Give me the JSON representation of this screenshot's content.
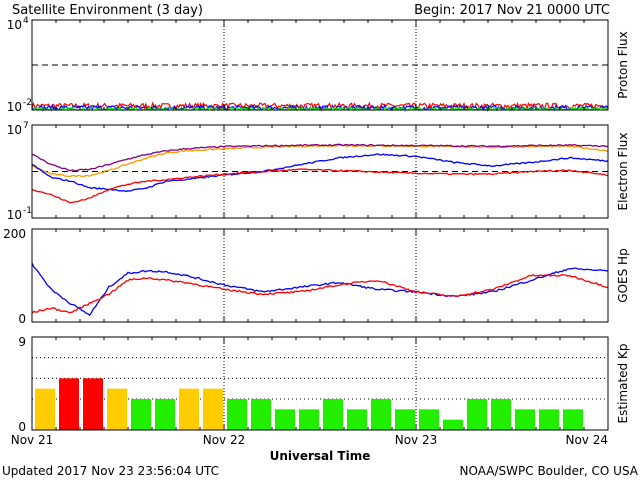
{
  "header": {
    "title": "Satellite Environment (3 day)",
    "begin": "Begin:  2017 Nov 21 0000 UTC"
  },
  "footer": {
    "updated": "Updated 2017 Nov 23 23:56:04 UTC",
    "credit": "NOAA/SWPC Boulder, CO USA"
  },
  "chart_data": [
    {
      "id": "proton",
      "type": "line",
      "ylabel": "Proton Flux",
      "ylim": [
        0.01,
        10000
      ],
      "log": true,
      "ytick_labels": [
        {
          "base": "10",
          "exp": "4"
        },
        {
          "base": "10",
          "exp": "-2"
        }
      ],
      "threshold": 10,
      "series": [
        {
          "color": "#ff0000",
          "value": 0.019,
          "jitter": 0.35
        },
        {
          "color": "#0000ff",
          "value": 0.014,
          "jitter": 0.3
        },
        {
          "color": "#00ee00",
          "value": 0.0115,
          "jitter": 0.25
        }
      ]
    },
    {
      "id": "electron",
      "type": "line",
      "ylabel": "Electron Flux",
      "ylim": [
        0.1,
        10000000
      ],
      "log": true,
      "ytick_labels": [
        {
          "base": "10",
          "exp": "7"
        },
        {
          "base": "10",
          "exp": "-1"
        }
      ],
      "threshold": 1000,
      "x": [
        0,
        0.1,
        0.2,
        0.3,
        0.4,
        0.5,
        0.6,
        0.7,
        0.8,
        1.0,
        1.2,
        1.4,
        1.6,
        1.8,
        2.0,
        2.2,
        2.4,
        2.6,
        2.8,
        3.0
      ],
      "series": [
        {
          "color": "#ff9900",
          "values": [
            3000,
            600,
            400,
            450,
            1200,
            4500,
            15000,
            40000,
            60000,
            90000,
            120000,
            150000,
            170000,
            160000,
            150000,
            140000,
            120000,
            140000,
            150000,
            60000
          ]
        },
        {
          "color": "#800080",
          "values": [
            30000,
            4000,
            1200,
            1500,
            4000,
            12000,
            30000,
            60000,
            90000,
            140000,
            160000,
            180000,
            190000,
            180000,
            170000,
            160000,
            150000,
            170000,
            180000,
            150000
          ]
        },
        {
          "color": "#0000ff",
          "values": [
            4000,
            300,
            150,
            40,
            30,
            20,
            40,
            150,
            200,
            500,
            1000,
            4000,
            15000,
            30000,
            20000,
            6000,
            3000,
            6000,
            15000,
            8000
          ]
        },
        {
          "color": "#ff0000",
          "values": [
            30,
            10,
            2,
            5,
            30,
            80,
            150,
            200,
            300,
            600,
            1000,
            1500,
            1200,
            900,
            700,
            600,
            600,
            1000,
            1300,
            500
          ]
        }
      ]
    },
    {
      "id": "hp",
      "type": "line",
      "ylabel": "GOES Hp",
      "ylim": [
        0,
        200
      ],
      "ytick_labels": [
        "200",
        "0"
      ],
      "x": [
        0,
        0.1,
        0.2,
        0.3,
        0.4,
        0.5,
        0.6,
        0.7,
        0.8,
        1.0,
        1.2,
        1.4,
        1.6,
        1.8,
        2.0,
        2.2,
        2.4,
        2.6,
        2.8,
        3.0
      ],
      "series": [
        {
          "color": "#0000ff",
          "values": [
            125,
            70,
            40,
            15,
            75,
            105,
            110,
            108,
            100,
            80,
            65,
            75,
            85,
            70,
            65,
            55,
            65,
            90,
            115,
            110
          ]
        },
        {
          "color": "#ff0000",
          "values": [
            20,
            30,
            20,
            40,
            60,
            90,
            95,
            90,
            85,
            70,
            60,
            65,
            80,
            90,
            65,
            55,
            70,
            100,
            100,
            75
          ]
        }
      ]
    },
    {
      "id": "kp",
      "type": "bar",
      "ylabel": "Estimated Kp",
      "ylim": [
        0,
        9
      ],
      "ytick_labels": [
        "9",
        "0"
      ],
      "values": [
        4,
        5,
        5,
        4,
        3,
        3,
        4,
        4,
        3,
        3,
        2,
        2,
        3,
        2,
        3,
        2,
        2,
        1,
        3,
        3,
        2,
        2,
        2
      ],
      "colors": {
        "quiet": "#22ee00",
        "active": "#ffcc00",
        "storm": "#ff0000"
      }
    }
  ],
  "x_axis": {
    "label": "Universal Time",
    "ticks": [
      "Nov 21",
      "Nov 22",
      "Nov 23",
      "Nov 24"
    ]
  }
}
